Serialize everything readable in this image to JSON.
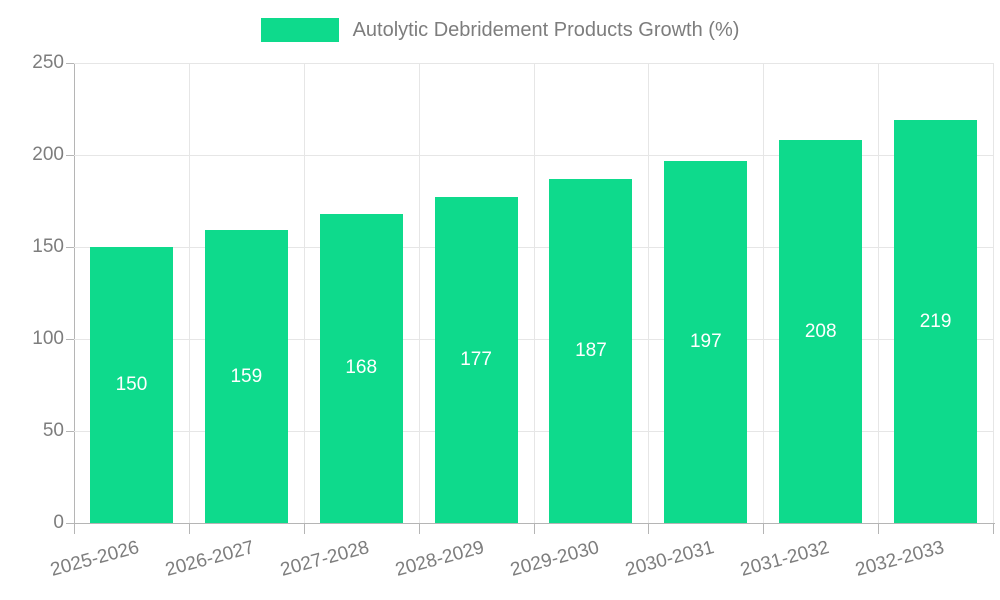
{
  "chart_data": {
    "type": "bar",
    "title": "Autolytic Debridement Products Growth (%)",
    "categories": [
      "2025-2026",
      "2026-2027",
      "2027-2028",
      "2028-2029",
      "2029-2030",
      "2030-2031",
      "2031-2032",
      "2032-2033"
    ],
    "values": [
      150,
      159,
      168,
      177,
      187,
      197,
      208,
      219
    ],
    "ylim": [
      0,
      250
    ],
    "yticks": [
      0,
      50,
      100,
      150,
      200,
      250
    ],
    "grid": true,
    "legend_position": "top",
    "xlabel": "",
    "ylabel": "",
    "colors": {
      "bar": "#0eda8c",
      "value_label": "#ffffff",
      "axis_line": "#b5b5b5",
      "gridline": "#e6e6e6",
      "text": "#7d7d7d"
    }
  }
}
